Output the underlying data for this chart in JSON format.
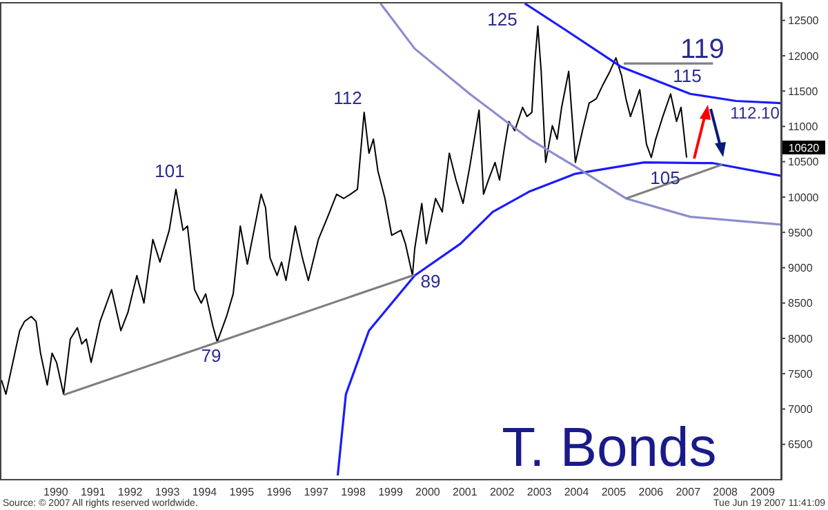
{
  "chart_data": {
    "type": "line",
    "title": "T. Bonds",
    "xlim": [
      1989,
      2010
    ],
    "xticks": [
      {
        "value": 1990.5,
        "label": "1990"
      },
      {
        "value": 1991.5,
        "label": "1991"
      },
      {
        "value": 1992.5,
        "label": "1992"
      },
      {
        "value": 1993.5,
        "label": "1993"
      },
      {
        "value": 1994.5,
        "label": "1994"
      },
      {
        "value": 1995.5,
        "label": "1995"
      },
      {
        "value": 1996.5,
        "label": "1996"
      },
      {
        "value": 1997.5,
        "label": "1997"
      },
      {
        "value": 1998.5,
        "label": "1998"
      },
      {
        "value": 1999.5,
        "label": "1999"
      },
      {
        "value": 2000.5,
        "label": "2000"
      },
      {
        "value": 2001.5,
        "label": "2001"
      },
      {
        "value": 2002.5,
        "label": "2002"
      },
      {
        "value": 2003.5,
        "label": "2003"
      },
      {
        "value": 2004.5,
        "label": "2004"
      },
      {
        "value": 2005.5,
        "label": "2005"
      },
      {
        "value": 2006.5,
        "label": "2006"
      },
      {
        "value": 2007.5,
        "label": "2007"
      },
      {
        "value": 2008.5,
        "label": "2008"
      },
      {
        "value": 2009.5,
        "label": "2009"
      }
    ],
    "ylim": [
      6000,
      12750
    ],
    "yticks": [
      6500,
      7000,
      7500,
      8000,
      8500,
      9000,
      9500,
      10000,
      10500,
      11000,
      11500,
      12000,
      12500
    ],
    "grid": false,
    "marker": "none",
    "line_style": "solid",
    "series": [
      {
        "color": "#000000",
        "x": [
          1989.04,
          1989.16,
          1989.53,
          1989.66,
          1989.84,
          1989.97,
          1990.09,
          1990.27,
          1990.4,
          1990.52,
          1990.71,
          1990.89,
          1991.08,
          1991.2,
          1991.32,
          1991.45,
          1991.69,
          1992.0,
          1992.25,
          1992.44,
          1992.68,
          1992.87,
          1993.11,
          1993.3,
          1993.55,
          1993.73,
          1993.92,
          1994.04,
          1994.23,
          1994.41,
          1994.53,
          1994.72,
          1994.84,
          1995.09,
          1995.27,
          1995.46,
          1995.65,
          1995.83,
          1996.02,
          1996.14,
          1996.26,
          1996.45,
          1996.57,
          1996.69,
          1996.94,
          1997.13,
          1997.29,
          1997.56,
          1997.81,
          1998.05,
          1998.24,
          1998.42,
          1998.61,
          1998.79,
          1998.92,
          1999.04,
          1999.16,
          1999.35,
          1999.53,
          1999.78,
          1999.9,
          2000.09,
          2000.15,
          2000.34,
          2000.46,
          2000.71,
          2000.89,
          2001.08,
          2001.26,
          2001.45,
          2001.63,
          2001.88,
          2002.0,
          2002.13,
          2002.31,
          2002.43,
          2002.56,
          2002.68,
          2002.84,
          2003.05,
          2003.17,
          2003.3,
          2003.38,
          2003.46,
          2003.55,
          2003.67,
          2003.85,
          2003.98,
          2004.1,
          2004.29,
          2004.47,
          2004.66,
          2004.84,
          2005.03,
          2005.21,
          2005.4,
          2005.56,
          2005.71,
          2005.83,
          2005.95,
          2006.2,
          2006.38,
          2006.51,
          2006.63,
          2006.82,
          2007.03,
          2007.19,
          2007.31,
          2007.46
        ],
        "values": [
          7410,
          7210,
          8110,
          8240,
          8310,
          8240,
          7790,
          7340,
          7790,
          7660,
          7210,
          7990,
          8150,
          7920,
          7990,
          7660,
          8240,
          8690,
          8110,
          8370,
          8890,
          8500,
          9400,
          9080,
          9530,
          10110,
          9530,
          9590,
          8690,
          8500,
          8630,
          8180,
          7950,
          8310,
          8630,
          9590,
          9050,
          9530,
          10040,
          9850,
          9140,
          8890,
          9080,
          8820,
          9590,
          9140,
          8820,
          9400,
          9720,
          10040,
          9980,
          10040,
          10110,
          11200,
          10620,
          10820,
          10370,
          9980,
          9460,
          9530,
          9340,
          8890,
          9270,
          9910,
          9340,
          9980,
          9790,
          10620,
          10240,
          9910,
          10430,
          11230,
          10040,
          10240,
          10490,
          10240,
          10690,
          11070,
          10940,
          11270,
          11140,
          11200,
          11910,
          12420,
          11780,
          10490,
          11010,
          10820,
          11270,
          11780,
          10490,
          10940,
          11330,
          11390,
          11590,
          11780,
          11970,
          11720,
          11390,
          11140,
          11520,
          10750,
          10560,
          10820,
          11140,
          11460,
          11070,
          11270,
          10560
        ]
      },
      {
        "type": "line",
        "color": "#1a1aff",
        "x": [
          2003.11,
          2004.22,
          2005.71,
          2007.56,
          2008.79,
          2010.0
        ],
        "values": [
          12740,
          12360,
          11840,
          11460,
          11360,
          11330
        ]
      },
      {
        "type": "line",
        "color": "#1a1aff",
        "x": [
          1998.08,
          1998.3,
          1998.92,
          2000.15,
          2001.38,
          2002.25,
          2003.24,
          2004.47,
          2006.32,
          2008.17,
          2010.0
        ],
        "values": [
          6060,
          7210,
          8110,
          8890,
          9340,
          9790,
          10080,
          10330,
          10490,
          10480,
          10300
        ]
      },
      {
        "type": "line",
        "color": "#8c8cd0",
        "x": [
          1999.23,
          2000.15,
          2001.63,
          2003.24,
          2004.47,
          2005.83,
          2007.56,
          2010.0
        ],
        "values": [
          12740,
          12100,
          11460,
          10820,
          10430,
          9980,
          9720,
          9610
        ]
      },
      {
        "type": "line",
        "color": "#808080",
        "x": [
          1990.71,
          2000.15
        ],
        "values": [
          7200,
          8900
        ]
      },
      {
        "type": "line",
        "color": "#808080",
        "x": [
          2005.83,
          2008.42
        ],
        "values": [
          9980,
          10460
        ]
      },
      {
        "type": "line",
        "color": "#808080",
        "x": [
          2005.77,
          2008.17
        ],
        "values": [
          11890,
          11890
        ]
      }
    ],
    "annotations": [
      "101",
      "79",
      "112",
      "89",
      "125",
      "119",
      "115",
      "112.10",
      "105",
      "10620",
      "Source: © 2007 All rights reserved worldwide.",
      "Tue Jun 19 2007 11:41:09"
    ]
  }
}
